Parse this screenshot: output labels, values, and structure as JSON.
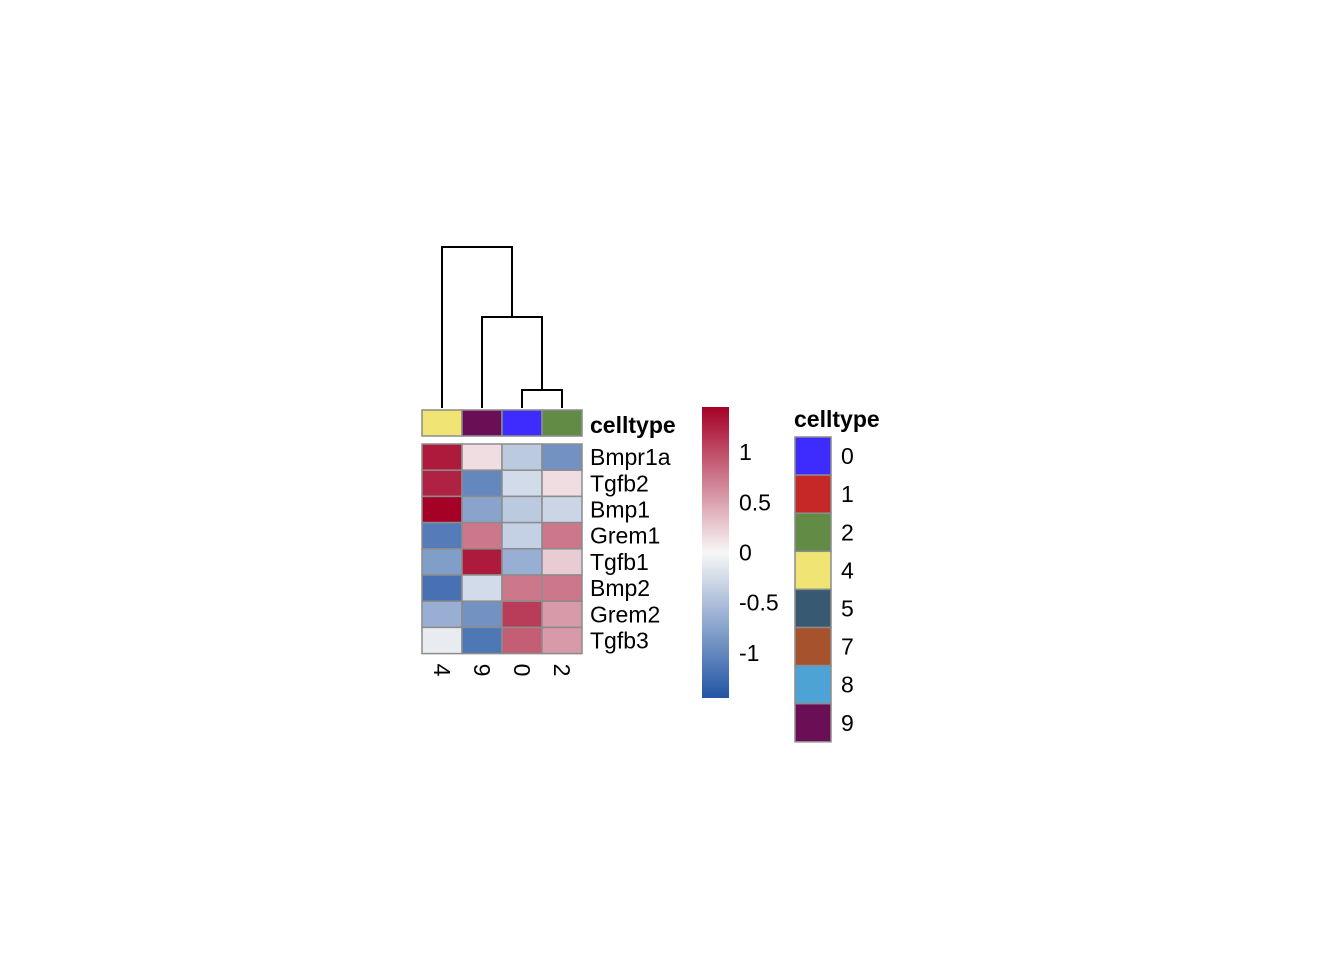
{
  "chart_data": {
    "type": "heatmap",
    "columns": [
      "4",
      "9",
      "0",
      "2"
    ],
    "rows": [
      "Bmpr1a",
      "Tgfb2",
      "Bmp1",
      "Grem1",
      "Tgfb1",
      "Bmp2",
      "Grem2",
      "Tgfb3"
    ],
    "values": [
      [
        1.3,
        0.15,
        -0.4,
        -0.9
      ],
      [
        1.25,
        -1.0,
        -0.25,
        0.15
      ],
      [
        1.45,
        -0.75,
        -0.4,
        -0.3
      ],
      [
        -1.1,
        0.75,
        -0.35,
        0.75
      ],
      [
        -0.8,
        1.3,
        -0.65,
        0.25
      ],
      [
        -1.2,
        -0.25,
        0.75,
        0.75
      ],
      [
        -0.65,
        -0.9,
        1.1,
        0.55
      ],
      [
        -0.1,
        -1.15,
        0.9,
        0.55
      ]
    ],
    "column_annotation": {
      "title": "celltype",
      "values": [
        "4",
        "9",
        "0",
        "2"
      ]
    },
    "color_scale": {
      "min": -1.45,
      "max": 1.45,
      "low_color": "#2255A4",
      "mid_color": "#F7F7F7",
      "high_color": "#A50026",
      "ticks": [
        {
          "value": 1,
          "label": "1"
        },
        {
          "value": 0.5,
          "label": "0.5"
        },
        {
          "value": 0,
          "label": "0"
        },
        {
          "value": -0.5,
          "label": "-0.5"
        },
        {
          "value": -1,
          "label": "-1"
        }
      ]
    },
    "legend": {
      "title": "celltype",
      "items": [
        {
          "label": "0",
          "color": "#3E2CFF"
        },
        {
          "label": "1",
          "color": "#C62828"
        },
        {
          "label": "2",
          "color": "#628C45"
        },
        {
          "label": "4",
          "color": "#F0E474"
        },
        {
          "label": "5",
          "color": "#375971"
        },
        {
          "label": "7",
          "color": "#A5522D"
        },
        {
          "label": "8",
          "color": "#4DA2D6"
        },
        {
          "label": "9",
          "color": "#6A0F55"
        }
      ]
    },
    "dendrogram": {
      "merges": [
        {
          "left": "0",
          "right": "2",
          "height": 1
        },
        {
          "left": "9",
          "right": "0,2",
          "height": 2
        },
        {
          "left": "4",
          "right": "9,0,2",
          "height": 3
        }
      ]
    }
  }
}
